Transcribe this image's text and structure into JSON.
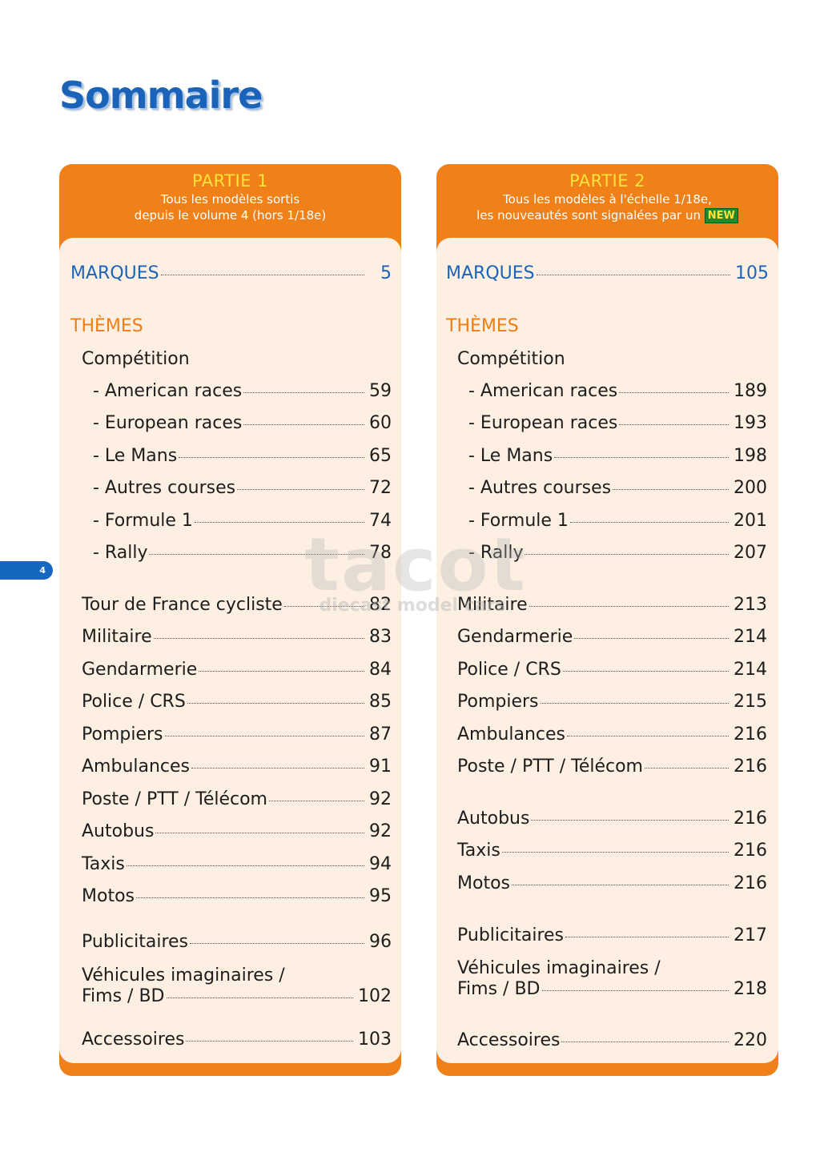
{
  "title": "Sommaire",
  "page_number": "4",
  "watermark": {
    "logo": "tacot",
    "tagline": "diecast model cars"
  },
  "part1": {
    "header": "PARTIE 1",
    "line1": "Tous les modèles sortis",
    "line2": "depuis le volume 4 (hors 1/18e)",
    "marques": {
      "label": "MARQUES",
      "page": "5"
    },
    "themes": "THÈMES",
    "competition": "Compétition",
    "comp_items": [
      {
        "label": "- American races",
        "page": "59"
      },
      {
        "label": "- European races",
        "page": "60"
      },
      {
        "label": "- Le Mans",
        "page": "65"
      },
      {
        "label": "- Autres courses",
        "page": "72"
      },
      {
        "label": "- Formule 1",
        "page": "74"
      },
      {
        "label": "- Rally",
        "page": "78"
      }
    ],
    "items": [
      {
        "label": "Tour de France cycliste",
        "page": "82"
      },
      {
        "label": "Militaire",
        "page": "83"
      },
      {
        "label": "Gendarmerie",
        "page": "84"
      },
      {
        "label": "Police / CRS",
        "page": "85"
      },
      {
        "label": "Pompiers",
        "page": "87"
      },
      {
        "label": "Ambulances",
        "page": "91"
      },
      {
        "label": "Poste / PTT / Télécom",
        "page": "92"
      },
      {
        "label": "Autobus",
        "page": "92"
      },
      {
        "label": "Taxis",
        "page": "94"
      },
      {
        "label": "Motos",
        "page": "95"
      }
    ],
    "publicitaires": {
      "label": "Publicitaires",
      "page": "96"
    },
    "vehicules_line1": "Véhicules imaginaires /",
    "vehicules": {
      "label": "Fims / BD",
      "page": "102"
    },
    "accessoires": {
      "label": "Accessoires",
      "page": "103"
    }
  },
  "part2": {
    "header": "PARTIE 2",
    "line1": "Tous les modèles à l'échelle 1/18e,",
    "line2": "les nouveautés sont signalées par un",
    "new_badge": "NEW",
    "marques": {
      "label": "MARQUES",
      "page": "105"
    },
    "themes": "THÈMES",
    "competition": "Compétition",
    "comp_items": [
      {
        "label": "- American races",
        "page": "189"
      },
      {
        "label": "- European races",
        "page": "193"
      },
      {
        "label": "- Le Mans",
        "page": "198"
      },
      {
        "label": "- Autres courses",
        "page": "200"
      },
      {
        "label": "- Formule 1",
        "page": "201"
      },
      {
        "label": "- Rally",
        "page": "207"
      }
    ],
    "items_a": [
      {
        "label": "Militaire",
        "page": "213"
      },
      {
        "label": "Gendarmerie",
        "page": "214"
      },
      {
        "label": "Police / CRS",
        "page": "214"
      },
      {
        "label": "Pompiers",
        "page": "215"
      },
      {
        "label": "Ambulances",
        "page": "216"
      },
      {
        "label": "Poste / PTT / Télécom",
        "page": "216"
      }
    ],
    "items_b": [
      {
        "label": "Autobus",
        "page": "216"
      },
      {
        "label": "Taxis",
        "page": "216"
      },
      {
        "label": "Motos",
        "page": "216"
      }
    ],
    "publicitaires": {
      "label": "Publicitaires",
      "page": "217"
    },
    "vehicules_line1": "Véhicules imaginaires /",
    "vehicules": {
      "label": "Fims / BD",
      "page": "218"
    },
    "accessoires": {
      "label": "Accessoires",
      "page": "220"
    }
  }
}
